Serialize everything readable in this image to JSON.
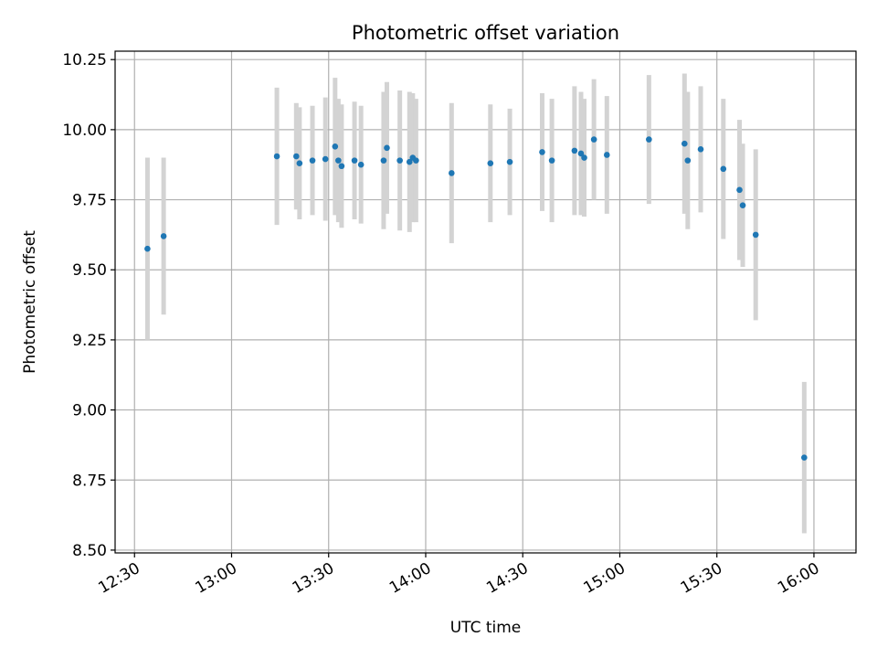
{
  "chart_data": {
    "type": "scatter",
    "title": "Photometric offset variation",
    "xlabel": "UTC time",
    "ylabel": "Photometric offset",
    "x_unit": "UTC time (HH:MM)",
    "xlim": [
      "12:24",
      "16:13"
    ],
    "ylim": [
      8.49,
      10.28
    ],
    "x_ticks": [
      "12:30",
      "13:00",
      "13:30",
      "14:00",
      "14:30",
      "15:00",
      "15:30",
      "16:00"
    ],
    "y_ticks": [
      "8.50",
      "8.75",
      "9.00",
      "9.25",
      "9.50",
      "9.75",
      "10.00",
      "10.25"
    ],
    "y_tick_values": [
      8.5,
      8.75,
      9.0,
      9.25,
      9.5,
      9.75,
      10.0,
      10.25
    ],
    "grid": true,
    "point_color": "#1f77b4",
    "errorbar_color": "#d3d3d3",
    "points": [
      {
        "x": "12:34",
        "y": 9.575,
        "err": 0.325
      },
      {
        "x": "12:39",
        "y": 9.62,
        "err": 0.28
      },
      {
        "x": "13:14",
        "y": 9.905,
        "err": 0.245
      },
      {
        "x": "13:20",
        "y": 9.905,
        "err": 0.19
      },
      {
        "x": "13:21",
        "y": 9.88,
        "err": 0.2
      },
      {
        "x": "13:25",
        "y": 9.89,
        "err": 0.195
      },
      {
        "x": "13:29",
        "y": 9.895,
        "err": 0.22
      },
      {
        "x": "13:32",
        "y": 9.94,
        "err": 0.245
      },
      {
        "x": "13:33",
        "y": 9.89,
        "err": 0.22
      },
      {
        "x": "13:34",
        "y": 9.87,
        "err": 0.22
      },
      {
        "x": "13:38",
        "y": 9.89,
        "err": 0.21
      },
      {
        "x": "13:40",
        "y": 9.875,
        "err": 0.21
      },
      {
        "x": "13:47",
        "y": 9.89,
        "err": 0.245
      },
      {
        "x": "13:48",
        "y": 9.935,
        "err": 0.235
      },
      {
        "x": "13:52",
        "y": 9.89,
        "err": 0.25
      },
      {
        "x": "13:55",
        "y": 9.885,
        "err": 0.25
      },
      {
        "x": "13:56",
        "y": 9.9,
        "err": 0.23
      },
      {
        "x": "13:57",
        "y": 9.89,
        "err": 0.22
      },
      {
        "x": "14:08",
        "y": 9.845,
        "err": 0.25
      },
      {
        "x": "14:20",
        "y": 9.88,
        "err": 0.21
      },
      {
        "x": "14:26",
        "y": 9.885,
        "err": 0.19
      },
      {
        "x": "14:36",
        "y": 9.92,
        "err": 0.21
      },
      {
        "x": "14:39",
        "y": 9.89,
        "err": 0.22
      },
      {
        "x": "14:46",
        "y": 9.925,
        "err": 0.23
      },
      {
        "x": "14:48",
        "y": 9.915,
        "err": 0.22
      },
      {
        "x": "14:49",
        "y": 9.9,
        "err": 0.21
      },
      {
        "x": "14:52",
        "y": 9.965,
        "err": 0.215
      },
      {
        "x": "14:56",
        "y": 9.91,
        "err": 0.21
      },
      {
        "x": "15:09",
        "y": 9.965,
        "err": 0.23
      },
      {
        "x": "15:20",
        "y": 9.95,
        "err": 0.25
      },
      {
        "x": "15:21",
        "y": 9.89,
        "err": 0.245
      },
      {
        "x": "15:25",
        "y": 9.93,
        "err": 0.225
      },
      {
        "x": "15:32",
        "y": 9.86,
        "err": 0.25
      },
      {
        "x": "15:37",
        "y": 9.785,
        "err": 0.25
      },
      {
        "x": "15:38",
        "y": 9.73,
        "err": 0.22
      },
      {
        "x": "15:42",
        "y": 9.625,
        "err": 0.305
      },
      {
        "x": "15:57",
        "y": 8.83,
        "err": 0.27
      }
    ]
  }
}
